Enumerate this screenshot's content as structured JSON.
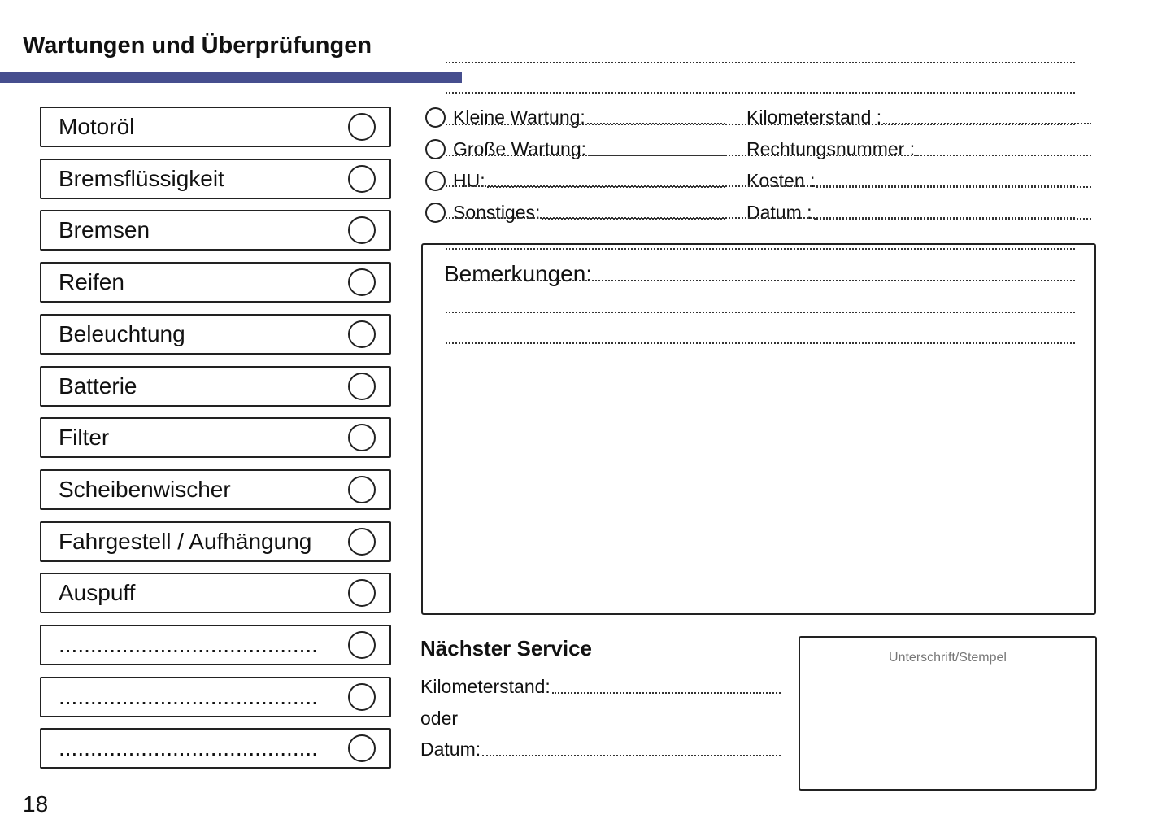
{
  "title": "Wartungen und Überprüfungen",
  "accent_color": "#464e8e",
  "checklist": [
    "Motoröl",
    "Bremsflüssigkeit",
    "Bremsen",
    "Reifen",
    "Beleuchtung",
    "Batterie",
    "Filter",
    "Scheibenwischer",
    "Fahrgestell / Aufhängung",
    "Auspuff",
    ".........................................",
    ".........................................",
    "........................................."
  ],
  "service_types": [
    "Kleine Wartung:",
    "Große Wartung:",
    "HU:",
    "Sonstiges:"
  ],
  "details": [
    "Kilometerstand :",
    "Rechtungsnummer :",
    "Kosten :",
    "Datum :"
  ],
  "remarks": {
    "title": "Bemerkungen:"
  },
  "next_service": {
    "title": "Nächster Service",
    "mileage": "Kilometerstand:",
    "or": "oder",
    "date": "Datum:"
  },
  "signature": {
    "label": "Unterschrift/Stempel"
  },
  "page_number": "18"
}
